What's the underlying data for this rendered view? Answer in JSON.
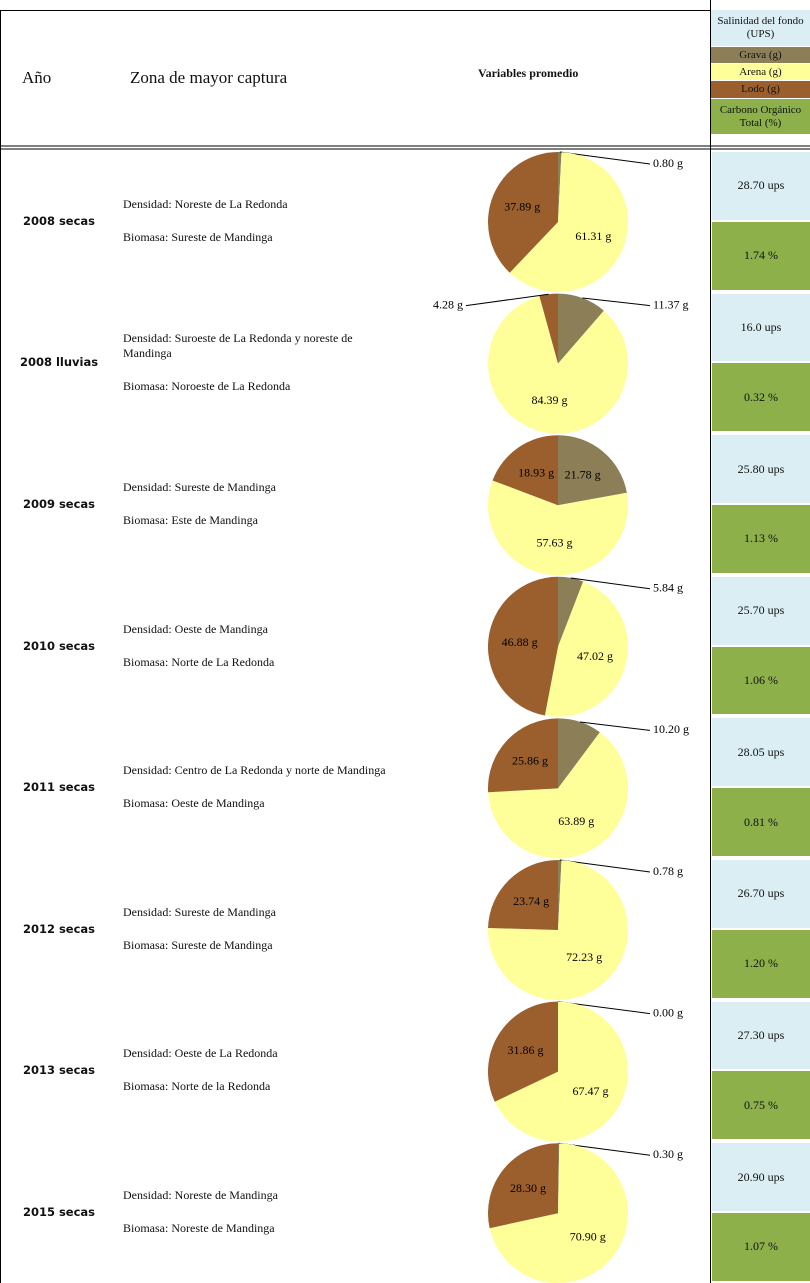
{
  "header": {
    "year": "Año",
    "zone": "Zona de mayor captura",
    "variables": "Variables promedio",
    "legend": {
      "salinity": "Salinidad del fondo (UPS)",
      "grava": "Grava (g)",
      "arena": "Arena (g)",
      "lodo": "Lodo (g)",
      "carbon": "Carbono Orgánico Total (%)"
    }
  },
  "colors": {
    "grava": "#8c7f57",
    "arena": "#ffff99",
    "lodo": "#9b5f2e",
    "salinity": "#dbeef3",
    "carbon": "#8db04b"
  },
  "rows": [
    {
      "year": "2008 secas",
      "density": "Densidad: Noreste de La Redonda",
      "biomass": "Biomasa: Sureste de Mandinga",
      "values": {
        "grava": 0.8,
        "arena": 61.31,
        "lodo": 37.89
      },
      "value_labels": {
        "grava": "0.80 g",
        "arena": "61.31 g",
        "lodo": "37.89 g"
      },
      "salinity": "28.70 ups",
      "carbon": "1.74 %"
    },
    {
      "year": "2008 lluvias",
      "density": "Densidad: Suroeste de La Redonda y noreste de Mandinga",
      "biomass": "Biomasa: Noroeste de La Redonda",
      "values": {
        "grava": 11.37,
        "arena": 84.39,
        "lodo": 4.28
      },
      "value_labels": {
        "grava": "11.37 g",
        "arena": "84.39 g",
        "lodo": "4.28 g"
      },
      "salinity": "16.0 ups",
      "carbon": "0.32 %"
    },
    {
      "year": "2009 secas",
      "density": "Densidad: Sureste de Mandinga",
      "biomass": "Biomasa: Este de Mandinga",
      "values": {
        "grava": 21.78,
        "arena": 57.63,
        "lodo": 18.93
      },
      "value_labels": {
        "grava": "21.78 g",
        "arena": "57.63 g",
        "lodo": "18.93 g"
      },
      "salinity": "25.80 ups",
      "carbon": "1.13 %"
    },
    {
      "year": "2010 secas",
      "density": "Densidad: Oeste de Mandinga",
      "biomass": "Biomasa: Norte de La Redonda",
      "values": {
        "grava": 5.84,
        "arena": 47.02,
        "lodo": 46.88
      },
      "value_labels": {
        "grava": "5.84 g",
        "arena": "47.02 g",
        "lodo": "46.88 g"
      },
      "salinity": "25.70 ups",
      "carbon": "1.06 %"
    },
    {
      "year": "2011 secas",
      "density": "Densidad: Centro de La Redonda y norte de Mandinga",
      "biomass": "Biomasa: Oeste de Mandinga",
      "values": {
        "grava": 10.2,
        "arena": 63.89,
        "lodo": 25.86
      },
      "value_labels": {
        "grava": "10.20 g",
        "arena": "63.89 g",
        "lodo": "25.86 g"
      },
      "salinity": "28.05 ups",
      "carbon": "0.81 %"
    },
    {
      "year": "2012 secas",
      "density": "Densidad: Sureste de Mandinga",
      "biomass": "Biomasa: Sureste de Mandinga",
      "values": {
        "grava": 0.78,
        "arena": 72.23,
        "lodo": 23.74
      },
      "value_labels": {
        "grava": "0.78 g",
        "arena": "72.23 g",
        "lodo": "23.74 g"
      },
      "salinity": "26.70 ups",
      "carbon": "1.20 %"
    },
    {
      "year": "2013 secas",
      "density": "Densidad: Oeste de La Redonda",
      "biomass": "Biomasa: Norte de la Redonda",
      "values": {
        "grava": 0.0,
        "arena": 67.47,
        "lodo": 31.86
      },
      "value_labels": {
        "grava": "0.00 g",
        "arena": "67.47 g",
        "lodo": "31.86 g"
      },
      "salinity": "27.30 ups",
      "carbon": "0.75 %"
    },
    {
      "year": "2015 secas",
      "density": "Densidad: Noreste de Mandinga",
      "biomass": "Biomasa: Noreste de Mandinga",
      "values": {
        "grava": 0.3,
        "arena": 70.9,
        "lodo": 28.3
      },
      "value_labels": {
        "grava": "0.30 g",
        "arena": "70.90 g",
        "lodo": "28.30 g"
      },
      "salinity": "20.90 ups",
      "carbon": "1.07 %"
    }
  ]
}
